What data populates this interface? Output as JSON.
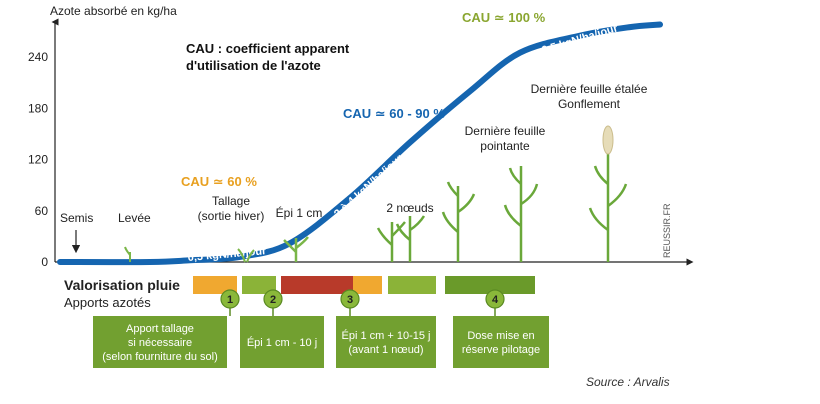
{
  "chart_data": {
    "type": "line",
    "ylabel": "Azote absorbé en kg/ha",
    "y_ticks": [
      "0",
      "60",
      "120",
      "180",
      "240"
    ],
    "ylim": [
      0,
      270
    ],
    "legend_note": "CAU : coefficient apparent d'utilisation de l'azote",
    "legend_lines": [
      "CAU : coefficient apparent",
      "d'utilisation de l'azote"
    ],
    "curve": {
      "color": "#1565b0",
      "x": [
        0,
        90,
        130,
        180,
        230,
        290,
        350,
        410,
        460,
        520,
        570,
        600
      ],
      "y": [
        0,
        0,
        2,
        6,
        22,
        75,
        140,
        200,
        245,
        265,
        275,
        278
      ]
    },
    "rate_labels": [
      "0,5 kgN/ha/jour",
      "2 à 4 kgN/ha/jour",
      "0,5 kgN/ha/jour"
    ],
    "cau_labels": [
      "CAU ≃ 60 %",
      "CAU ≃ 60 - 90 %",
      "CAU ≃ 100 %"
    ],
    "stages": [
      {
        "lines": [
          "Semis"
        ]
      },
      {
        "lines": [
          "Levée"
        ]
      },
      {
        "lines": [
          "Tallage",
          "(sortie hiver)"
        ]
      },
      {
        "lines": [
          "Épi 1 cm"
        ]
      },
      {
        "lines": [
          "2 nœuds"
        ]
      },
      {
        "lines": [
          "Dernière feuille",
          "pointante"
        ]
      },
      {
        "lines": [
          "Dernière feuille étalée",
          "Gonflement"
        ]
      }
    ],
    "rain_label": "Valorisation pluie",
    "inputs_label": "Apports azotés",
    "rain_segments": [
      {
        "color": "#f0a830"
      },
      {
        "color": "#8bb338"
      },
      {
        "color": "#b83a2a"
      },
      {
        "color": "#f0a830"
      },
      {
        "color": "#8bb338"
      },
      {
        "color": "#6a9a2a"
      }
    ],
    "apports": [
      {
        "num": "1",
        "lines": [
          "Apport tallage",
          "si nécessaire",
          "(selon fourniture du sol)"
        ]
      },
      {
        "num": "2",
        "lines": [
          "Épi 1 cm - 10 j"
        ]
      },
      {
        "num": "3",
        "lines": [
          "Épi 1 cm + 10-15 j",
          "(avant 1 nœud)"
        ]
      },
      {
        "num": "4",
        "lines": [
          "Dose mise en",
          "réserve pilotage"
        ]
      }
    ],
    "source": "Source : Arvalis",
    "credit": "REUSSIR.FR"
  }
}
